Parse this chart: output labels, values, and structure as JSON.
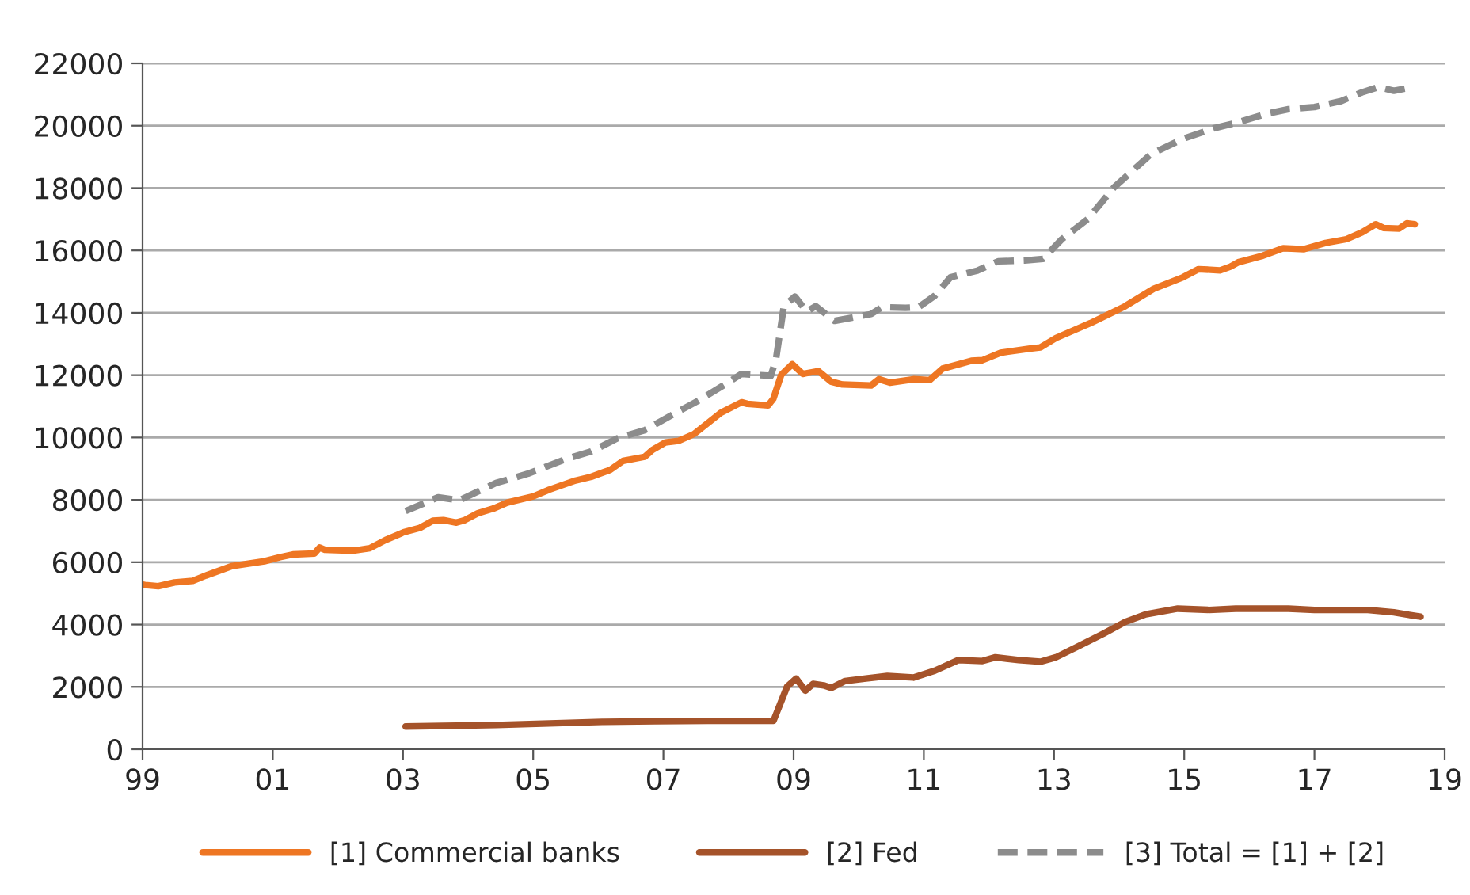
{
  "chart_data": {
    "type": "line",
    "xlim": [
      1999,
      2019
    ],
    "xticks": [
      {
        "value": 1999,
        "label": "99"
      },
      {
        "value": 2001,
        "label": "01"
      },
      {
        "value": 2003,
        "label": "03"
      },
      {
        "value": 2005,
        "label": "05"
      },
      {
        "value": 2007,
        "label": "07"
      },
      {
        "value": 2009,
        "label": "09"
      },
      {
        "value": 2011,
        "label": "11"
      },
      {
        "value": 2013,
        "label": "13"
      },
      {
        "value": 2015,
        "label": "15"
      },
      {
        "value": 2017,
        "label": "17"
      },
      {
        "value": 2019,
        "label": "19"
      }
    ],
    "ylim": [
      0,
      22000
    ],
    "yticks": [
      0,
      2000,
      4000,
      6000,
      8000,
      10000,
      12000,
      14000,
      16000,
      18000,
      20000,
      22000
    ],
    "grid": "y",
    "legend": "bottom",
    "marker": "none",
    "series": [
      {
        "name": "[1] Commercial banks",
        "color": "#ee7623",
        "line_style": "solid",
        "x": [
          1999.0,
          1999.04,
          1999.24,
          1999.49,
          1999.77,
          1999.97,
          2000.38,
          2000.87,
          2001.11,
          2001.31,
          2001.64,
          2001.72,
          2001.8,
          2002.24,
          2002.49,
          2002.73,
          2003.01,
          2003.26,
          2003.46,
          2003.62,
          2003.82,
          2003.95,
          2004.15,
          2004.39,
          2004.6,
          2005.0,
          2005.25,
          2005.65,
          2005.89,
          2006.18,
          2006.38,
          2006.71,
          2006.83,
          2007.03,
          2007.23,
          2007.47,
          2007.88,
          2008.2,
          2008.29,
          2008.61,
          2008.69,
          2008.81,
          2008.98,
          2009.14,
          2009.38,
          2009.58,
          2009.75,
          2010.19,
          2010.31,
          2010.48,
          2010.84,
          2011.09,
          2011.29,
          2011.73,
          2011.9,
          2012.18,
          2012.63,
          2012.79,
          2013.03,
          2013.56,
          2014.09,
          2014.53,
          2014.98,
          2015.22,
          2015.55,
          2015.71,
          2015.83,
          2016.19,
          2016.52,
          2016.84,
          2017.17,
          2017.49,
          2017.73,
          2017.94,
          2018.06,
          2018.3,
          2018.42,
          2018.54
        ],
        "values": [
          5280,
          5270,
          5230,
          5350,
          5400,
          5570,
          5880,
          6030,
          6160,
          6250,
          6280,
          6470,
          6400,
          6370,
          6450,
          6710,
          6960,
          7100,
          7330,
          7350,
          7270,
          7350,
          7570,
          7720,
          7910,
          8110,
          8330,
          8620,
          8740,
          8960,
          9250,
          9380,
          9600,
          9840,
          9890,
          10110,
          10790,
          11130,
          11080,
          11030,
          11250,
          12010,
          12350,
          12040,
          12130,
          11790,
          11700,
          11670,
          11870,
          11760,
          11870,
          11840,
          12210,
          12460,
          12480,
          12720,
          12850,
          12890,
          13190,
          13670,
          14210,
          14770,
          15140,
          15400,
          15360,
          15480,
          15620,
          15820,
          16070,
          16040,
          16240,
          16360,
          16580,
          16840,
          16720,
          16700,
          16870,
          16840
        ]
      },
      {
        "name": "[2] Fed",
        "color": "#a5532a",
        "line_style": "solid",
        "x": [
          2003.04,
          2003.62,
          2004.43,
          2005.25,
          2006.06,
          2006.87,
          2007.68,
          2008.69,
          2008.9,
          2009.04,
          2009.18,
          2009.3,
          2009.46,
          2009.58,
          2009.79,
          2010.11,
          2010.44,
          2010.84,
          2011.17,
          2011.53,
          2011.9,
          2012.1,
          2012.46,
          2012.79,
          2013.03,
          2013.36,
          2013.76,
          2014.09,
          2014.41,
          2014.9,
          2015.38,
          2015.79,
          2016.6,
          2017.0,
          2017.82,
          2018.22,
          2018.63
        ],
        "values": [
          730,
          750,
          780,
          830,
          880,
          900,
          910,
          910,
          2010,
          2270,
          1880,
          2100,
          2050,
          1970,
          2190,
          2270,
          2350,
          2300,
          2520,
          2860,
          2830,
          2950,
          2860,
          2810,
          2950,
          3290,
          3710,
          4080,
          4330,
          4510,
          4470,
          4510,
          4510,
          4470,
          4470,
          4390,
          4250
        ]
      },
      {
        "name": "[3] Total = [1] + [2]",
        "color": "#8c8c8c",
        "line_style": "dashed",
        "x": [
          2003.04,
          2003.54,
          2003.87,
          2004.43,
          2004.92,
          2005.49,
          2005.89,
          2006.3,
          2006.71,
          2007.19,
          2007.52,
          2007.92,
          2008.2,
          2008.65,
          2008.73,
          2008.85,
          2009.02,
          2009.2,
          2009.34,
          2009.63,
          2010.19,
          2010.36,
          2010.72,
          2010.92,
          2011.17,
          2011.41,
          2011.82,
          2012.14,
          2012.55,
          2012.83,
          2013.12,
          2013.52,
          2013.92,
          2014.49,
          2014.98,
          2015.46,
          2015.79,
          2016.28,
          2016.6,
          2017.0,
          2017.41,
          2017.73,
          2017.98,
          2018.22,
          2018.42
        ],
        "values": [
          7640,
          8080,
          7990,
          8540,
          8840,
          9300,
          9550,
          9980,
          10230,
          10790,
          11160,
          11670,
          12040,
          11980,
          12520,
          14210,
          14520,
          14040,
          14210,
          13740,
          13960,
          14180,
          14160,
          14180,
          14550,
          15140,
          15350,
          15650,
          15680,
          15730,
          16360,
          17010,
          18020,
          19090,
          19580,
          19920,
          20090,
          20390,
          20530,
          20600,
          20790,
          21070,
          21240,
          21120,
          21200
        ]
      }
    ]
  }
}
